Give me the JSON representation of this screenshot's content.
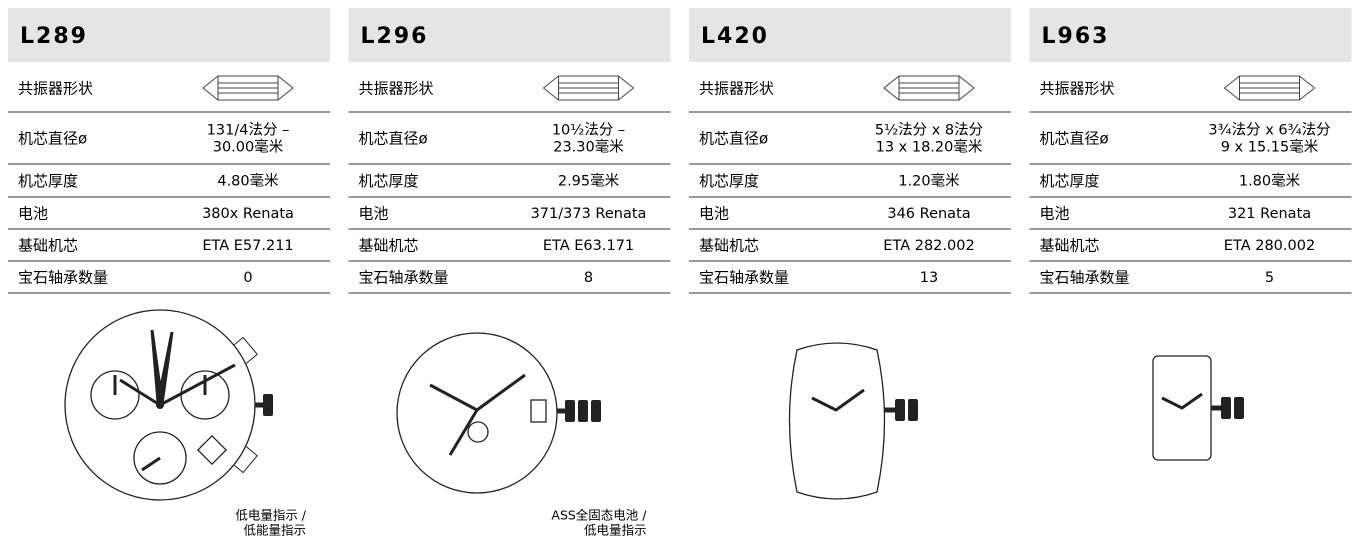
{
  "columns": [
    {
      "title": "L289",
      "shape_label": "共振器形状",
      "rows": [
        {
          "label": "机芯直径ø",
          "value": [
            "131/4法分 –",
            "30.00毫米"
          ]
        },
        {
          "label": "机芯厚度",
          "value": [
            "4.80毫米"
          ]
        },
        {
          "label": "电池",
          "value": [
            "380x Renata"
          ]
        },
        {
          "label": "基础机芯",
          "value": [
            "ETA E57.211"
          ]
        },
        {
          "label": "宝石轴承数量",
          "value": [
            "0"
          ]
        }
      ],
      "note": [
        "低电量指示 /",
        "低能量指示"
      ]
    },
    {
      "title": "L296",
      "shape_label": "共振器形状",
      "rows": [
        {
          "label": "机芯直径ø",
          "value": [
            "10½法分 –",
            "23.30毫米"
          ]
        },
        {
          "label": "机芯厚度",
          "value": [
            "2.95毫米"
          ]
        },
        {
          "label": "电池",
          "value": [
            "371/373 Renata"
          ]
        },
        {
          "label": "基础机芯",
          "value": [
            "ETA E63.171"
          ]
        },
        {
          "label": "宝石轴承数量",
          "value": [
            "8"
          ]
        }
      ],
      "note": [
        "ASS全固态电池 /",
        "低电量指示"
      ]
    },
    {
      "title": "L420",
      "shape_label": "共振器形状",
      "rows": [
        {
          "label": "机芯直径ø",
          "value": [
            "5½法分 x 8法分",
            "13 x 18.20毫米"
          ]
        },
        {
          "label": "机芯厚度",
          "value": [
            "1.20毫米"
          ]
        },
        {
          "label": "电池",
          "value": [
            "346 Renata"
          ]
        },
        {
          "label": "基础机芯",
          "value": [
            "ETA 282.002"
          ]
        },
        {
          "label": "宝石轴承数量",
          "value": [
            "13"
          ]
        }
      ]
    },
    {
      "title": "L963",
      "shape_label": "共振器形状",
      "rows": [
        {
          "label": "机芯直径ø",
          "value": [
            "3¾法分 x 6¾法分",
            "9 x 15.15毫米"
          ]
        },
        {
          "label": "机芯厚度",
          "value": [
            "1.80毫米"
          ]
        },
        {
          "label": "电池",
          "value": [
            "321 Renata"
          ]
        },
        {
          "label": "基础机芯",
          "value": [
            "ETA 280.002"
          ]
        },
        {
          "label": "宝石轴承数量",
          "value": [
            "5"
          ]
        }
      ]
    }
  ]
}
